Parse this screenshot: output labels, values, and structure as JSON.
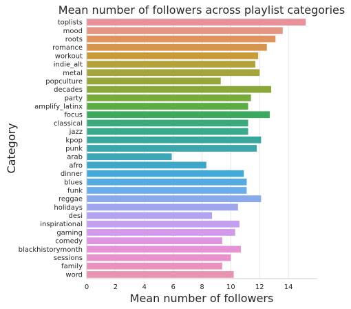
{
  "chart_data": {
    "type": "bar",
    "orientation": "horizontal",
    "title": "Mean number of followers across playlist categories",
    "xlabel": "Mean number of followers",
    "ylabel": "Category",
    "xlim": [
      0,
      16
    ],
    "xticks": [
      "0",
      "2",
      "4",
      "6",
      "8",
      "10",
      "12",
      "14"
    ],
    "grid": "vertical",
    "categories": [
      "toplists",
      "mood",
      "roots",
      "romance",
      "workout",
      "indie_alt",
      "metal",
      "popculture",
      "decades",
      "party",
      "amplify_latinx",
      "focus",
      "classical",
      "jazz",
      "kpop",
      "punk",
      "arab",
      "afro",
      "dinner",
      "blues",
      "funk",
      "reggae",
      "holidays",
      "desi",
      "inspirational",
      "gaming",
      "comedy",
      "blackhistorymonth",
      "sessions",
      "family",
      "word"
    ],
    "values": [
      15.2,
      13.6,
      13.1,
      12.5,
      11.9,
      11.7,
      12.0,
      9.3,
      12.8,
      11.4,
      11.2,
      12.7,
      11.2,
      11.2,
      12.1,
      11.8,
      5.9,
      8.3,
      10.9,
      11.1,
      11.1,
      12.1,
      10.5,
      8.7,
      10.6,
      10.3,
      9.4,
      10.7,
      10.0,
      9.4,
      10.2
    ],
    "colors": [
      "#e8919a",
      "#e69484",
      "#e0925f",
      "#d6934b",
      "#c99a39",
      "#b5a23a",
      "#a3a53a",
      "#97a63a",
      "#8aa83a",
      "#77ab3b",
      "#5aad43",
      "#3caa5e",
      "#3aaa7c",
      "#3aa98e",
      "#3aa79d",
      "#3ca6ab",
      "#3da6b8",
      "#3ea7c8",
      "#43a9d8",
      "#53abe2",
      "#6aadea",
      "#8aa9ec",
      "#9fa6ee",
      "#b1a3ee",
      "#c2a0ef",
      "#d39ae9",
      "#e095e0",
      "#e693d6",
      "#e891ca",
      "#e892bd",
      "#e893b0"
    ]
  }
}
